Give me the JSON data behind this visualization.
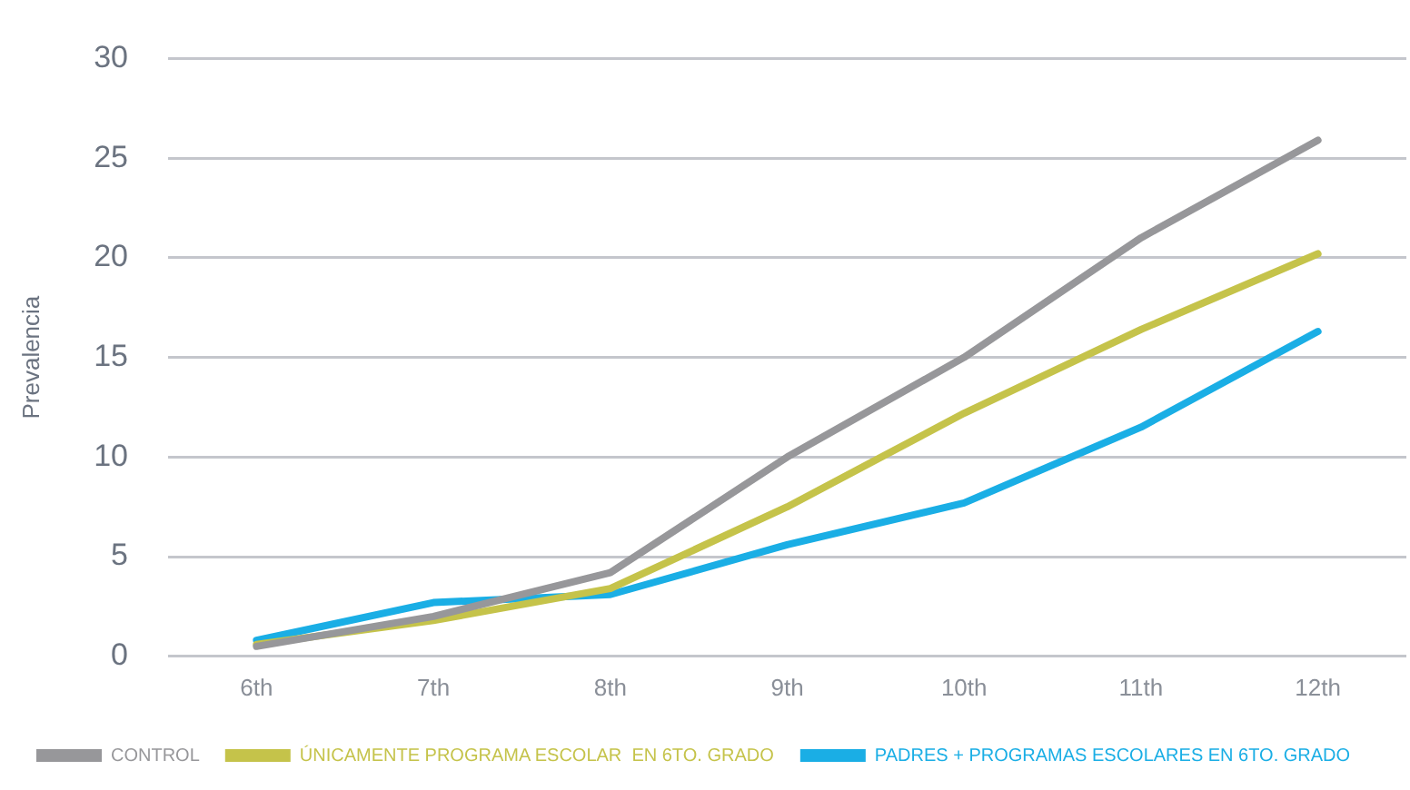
{
  "chart_data": {
    "type": "line",
    "ylabel": "Prevalencia",
    "categories": [
      "6th",
      "7th",
      "8th",
      "9th",
      "10th",
      "11th",
      "12th"
    ],
    "series": [
      {
        "name": "CONTROL",
        "color": "#97979a",
        "values": [
          0.5,
          2.0,
          4.2,
          10.0,
          15.0,
          21.0,
          25.9
        ]
      },
      {
        "name": "ÚNICAMENTE PROGRAMA ESCOLAR  EN 6TO. GRADO",
        "color": "#c5c34a",
        "values": [
          0.6,
          1.8,
          3.4,
          7.5,
          12.2,
          16.4,
          20.2
        ]
      },
      {
        "name": "PADRES + PROGRAMAS ESCOLARES EN 6TO. GRADO",
        "color": "#1aaee5",
        "values": [
          0.8,
          2.7,
          3.1,
          5.6,
          7.7,
          11.5,
          16.3
        ]
      }
    ],
    "ylim": [
      0,
      30
    ],
    "yticks": [
      0,
      5,
      10,
      15,
      20,
      25,
      30
    ],
    "grid": "y",
    "legend": "bottom",
    "marker": "none",
    "line_style": "solid"
  }
}
